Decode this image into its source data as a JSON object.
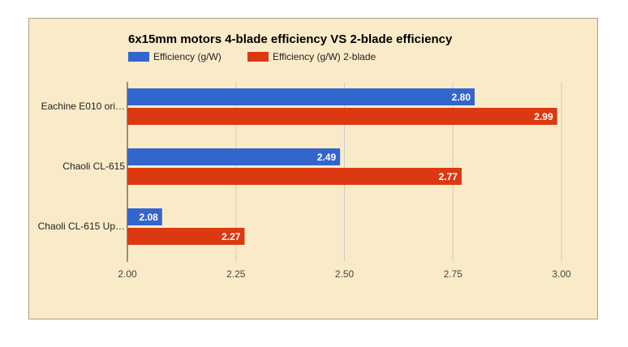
{
  "chart_data": {
    "type": "bar",
    "orientation": "horizontal",
    "title": "6x15mm motors 4-blade efficiency VS 2-blade efficiency",
    "categories": [
      "Eachine E010 ori…",
      "Chaoli CL-615",
      "Chaoli CL-615 Up…"
    ],
    "series": [
      {
        "name": "Efficiency (g/W)",
        "color": "#3366cc",
        "values": [
          2.8,
          2.49,
          2.08
        ],
        "labels": [
          "2.80",
          "2.49",
          "2.08"
        ]
      },
      {
        "name": "Efficiency (g/W) 2-blade",
        "color": "#dc3912",
        "values": [
          2.99,
          2.77,
          2.27
        ],
        "labels": [
          "2.99",
          "2.77",
          "2.27"
        ]
      }
    ],
    "xlim": [
      2.0,
      3.0
    ],
    "xticks": [
      "2.00",
      "2.25",
      "2.50",
      "2.75",
      "3.00"
    ],
    "xtick_values": [
      2.0,
      2.25,
      2.5,
      2.75,
      3.0
    ],
    "grid": true,
    "legend_position": "top-left"
  }
}
